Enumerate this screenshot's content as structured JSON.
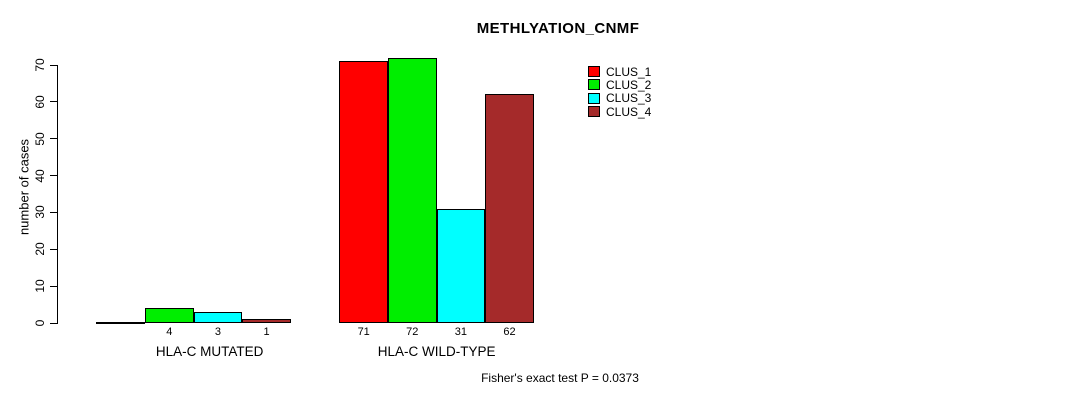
{
  "chart_data": {
    "type": "bar",
    "title": "METHLYATION_CNMF",
    "categories": [
      "HLA-C MUTATED",
      "HLA-C WILD-TYPE"
    ],
    "series": [
      {
        "name": "CLUS_1",
        "color": "#ff0000",
        "values": [
          0,
          71
        ]
      },
      {
        "name": "CLUS_2",
        "color": "#00ee00",
        "values": [
          4,
          72
        ]
      },
      {
        "name": "CLUS_3",
        "color": "#00ffff",
        "values": [
          3,
          31
        ]
      },
      {
        "name": "CLUS_4",
        "color": "#a52a2a",
        "values": [
          1,
          62
        ]
      }
    ],
    "bar_value_labels": [
      [
        "",
        "4",
        "3",
        "1"
      ],
      [
        "71",
        "72",
        "31",
        "62"
      ]
    ],
    "ylabel": "number of cases",
    "xlabel": "",
    "ylim": [
      0,
      70
    ],
    "yticks": [
      0,
      10,
      20,
      30,
      40,
      50,
      60,
      70
    ],
    "grid": false,
    "legend_position": "top-right",
    "legend_entries": [
      "CLUS_1",
      "CLUS_2",
      "CLUS_3",
      "CLUS_4"
    ],
    "annotation": "Fisher's exact test P = 0.0373"
  }
}
